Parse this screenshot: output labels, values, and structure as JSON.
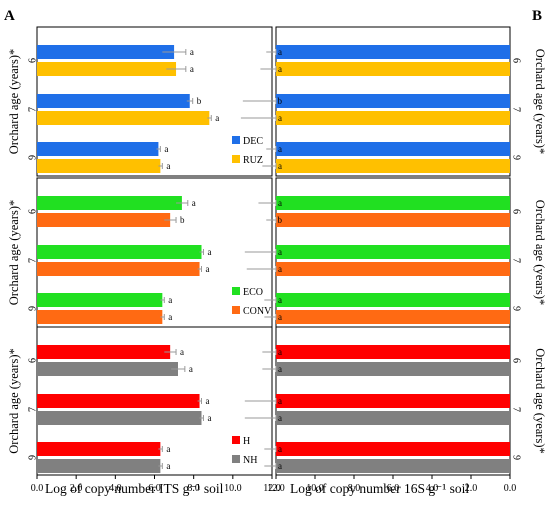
{
  "panel_labels": {
    "left": "A",
    "right": "B"
  },
  "x_axis_labels": {
    "left": "Log of copy number ITS g⁻¹ soil",
    "right": "Log of copy number 16S g⁻¹ soil"
  },
  "ylabel": "Orchard age (years)*",
  "chart_data": [
    {
      "type": "bar",
      "orientation": "horizontal",
      "panel": "A",
      "xlim": [
        0,
        12
      ],
      "xticks": [
        "0.0",
        "2.0",
        "4.0",
        "6.0",
        "8.0",
        "10.0",
        "12.0"
      ],
      "groups": [
        {
          "categories": [
            "6",
            "7",
            "9"
          ],
          "series": [
            {
              "name": "DEC",
              "color": "#1f6fe8",
              "values": [
                7.0,
                7.8,
                6.2
              ],
              "errors": [
                0.6,
                0.15,
                0.1
              ],
              "letters": [
                "a",
                "b",
                "a"
              ]
            },
            {
              "name": "RUZ",
              "color": "#ffc000",
              "values": [
                7.1,
                8.8,
                6.3
              ],
              "errors": [
                0.5,
                0.1,
                0.1
              ],
              "letters": [
                "a",
                "a",
                "a"
              ]
            }
          ]
        },
        {
          "categories": [
            "6",
            "7",
            "9"
          ],
          "series": [
            {
              "name": "ECO",
              "color": "#21e021",
              "values": [
                7.4,
                8.4,
                6.4
              ],
              "errors": [
                0.3,
                0.1,
                0.1
              ],
              "letters": [
                "a",
                "a",
                "a"
              ]
            },
            {
              "name": "CONV",
              "color": "#ff6a13",
              "values": [
                6.8,
                8.3,
                6.4
              ],
              "errors": [
                0.3,
                0.1,
                0.1
              ],
              "letters": [
                "b",
                "a",
                "a"
              ]
            }
          ]
        },
        {
          "categories": [
            "6",
            "7",
            "9"
          ],
          "series": [
            {
              "name": "H",
              "color": "#ff0000",
              "values": [
                6.8,
                8.3,
                6.3
              ],
              "errors": [
                0.3,
                0.1,
                0.1
              ],
              "letters": [
                "a",
                "a",
                "a"
              ]
            },
            {
              "name": "NH",
              "color": "#808080",
              "values": [
                7.2,
                8.4,
                6.3
              ],
              "errors": [
                0.35,
                0.1,
                0.1
              ],
              "letters": [
                "a",
                "a",
                "a"
              ]
            }
          ]
        }
      ]
    },
    {
      "type": "bar",
      "orientation": "horizontal",
      "panel": "B",
      "x_reversed": true,
      "xlim": [
        0,
        12
      ],
      "xticks": [
        "12.0",
        "10.0",
        "8.0",
        "6.0",
        "4.0",
        "2.0",
        "0.0"
      ],
      "groups": [
        {
          "categories": [
            "6",
            "7",
            "9"
          ],
          "series": [
            {
              "name": "DEC",
              "color": "#1f6fe8",
              "values": [
                12.6,
                13.8,
                12.6
              ],
              "errors": [
                0.1,
                0.1,
                0.1
              ],
              "letters": [
                "a",
                "b",
                "a"
              ]
            },
            {
              "name": "RUZ",
              "color": "#ffc000",
              "values": [
                12.9,
                13.9,
                12.8
              ],
              "errors": [
                0.1,
                0.1,
                0.1
              ],
              "letters": [
                "a",
                "a",
                "a"
              ]
            }
          ]
        },
        {
          "categories": [
            "6",
            "7",
            "9"
          ],
          "series": [
            {
              "name": "ECO",
              "color": "#21e021",
              "values": [
                13.0,
                13.7,
                12.7
              ],
              "errors": [
                0.1,
                0.1,
                0.1
              ],
              "letters": [
                "a",
                "a",
                "a"
              ]
            },
            {
              "name": "CONV",
              "color": "#ff6a13",
              "values": [
                12.6,
                13.6,
                12.7
              ],
              "errors": [
                0.1,
                0.1,
                0.1
              ],
              "letters": [
                "b",
                "a",
                "a"
              ]
            }
          ]
        },
        {
          "categories": [
            "6",
            "7",
            "9"
          ],
          "series": [
            {
              "name": "H",
              "color": "#ff0000",
              "values": [
                12.8,
                13.7,
                12.7
              ],
              "errors": [
                0.1,
                0.1,
                0.1
              ],
              "letters": [
                "a",
                "a",
                "a"
              ]
            },
            {
              "name": "NH",
              "color": "#808080",
              "values": [
                12.8,
                13.7,
                12.7
              ],
              "errors": [
                0.1,
                0.1,
                0.1
              ],
              "letters": [
                "a",
                "a",
                "a"
              ]
            }
          ]
        }
      ]
    }
  ]
}
